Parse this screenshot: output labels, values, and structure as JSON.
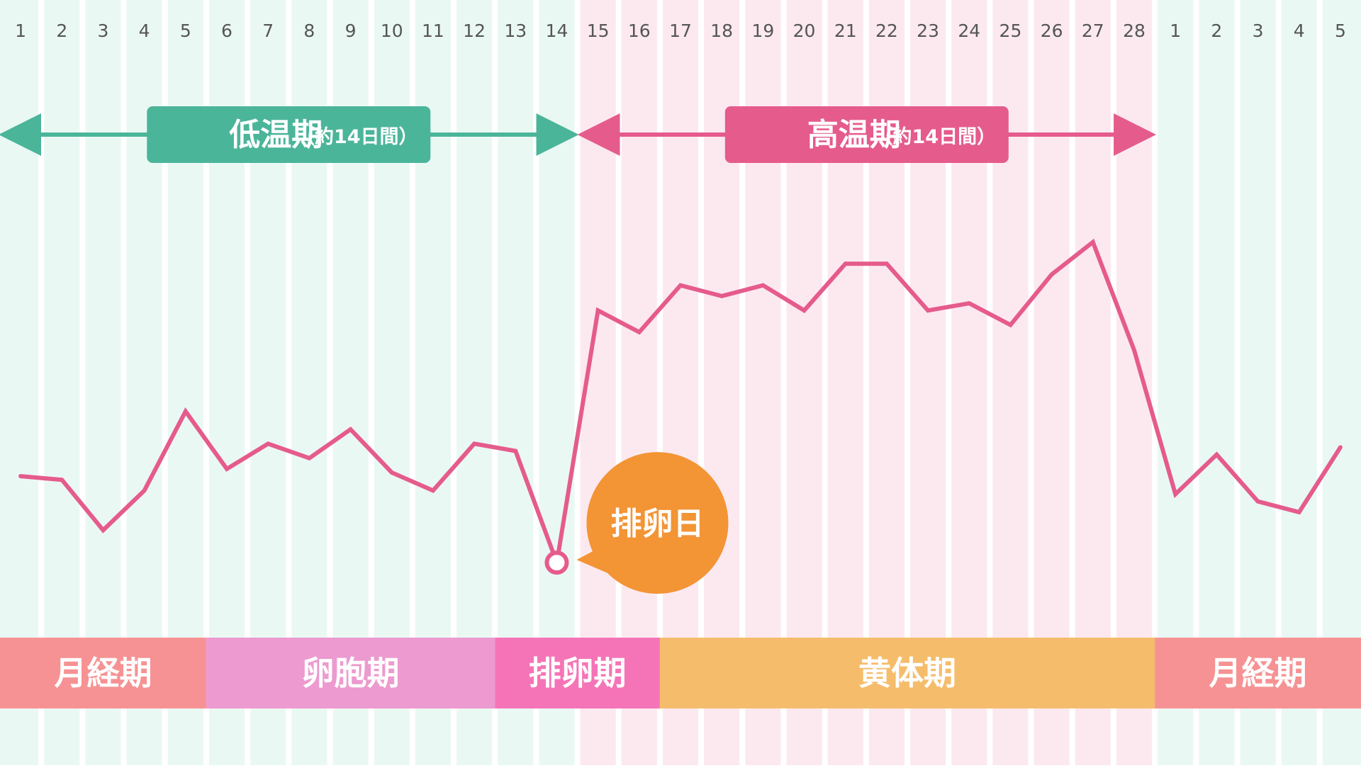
{
  "chart_data": {
    "type": "line",
    "days": [
      "1",
      "2",
      "3",
      "4",
      "5",
      "6",
      "7",
      "8",
      "9",
      "10",
      "11",
      "12",
      "13",
      "14",
      "15",
      "16",
      "17",
      "18",
      "19",
      "20",
      "21",
      "22",
      "23",
      "24",
      "25",
      "26",
      "27",
      "28",
      "1",
      "2",
      "3",
      "4",
      "5"
    ],
    "series": [
      {
        "values": [
          36.35,
          36.34,
          36.2,
          36.31,
          36.53,
          36.37,
          36.44,
          36.4,
          36.48,
          36.36,
          36.31,
          36.44,
          36.42,
          36.11,
          36.81,
          36.75,
          36.88,
          36.85,
          36.88,
          36.81,
          36.94,
          36.94,
          36.81,
          36.83,
          36.77,
          36.91,
          37.0,
          36.7,
          36.3,
          36.41,
          36.28,
          36.25,
          36.43
        ]
      }
    ],
    "ovulation_day_index": 13,
    "ylim": [
      36.0,
      37.2
    ],
    "grid": "vertical-stripes",
    "periods": [
      {
        "label": "低温期",
        "note": "（約14日間）",
        "start": 0,
        "end": 14,
        "color": "#4bb59a"
      },
      {
        "label": "高温期",
        "note": "（約14日間）",
        "start": 14,
        "end": 28,
        "color": "#e55b8c"
      }
    ],
    "callout": {
      "label": "排卵日",
      "color": "#f39435"
    },
    "phases": [
      {
        "label": "月経期",
        "start": 0,
        "end": 5,
        "color": "#f69293"
      },
      {
        "label": "卵胞期",
        "start": 5,
        "end": 12,
        "color": "#ec9acf"
      },
      {
        "label": "排卵期",
        "start": 12,
        "end": 16,
        "color": "#f574b7"
      },
      {
        "label": "黄体期",
        "start": 16,
        "end": 28,
        "color": "#f5bd6b"
      },
      {
        "label": "月経期",
        "start": 28,
        "end": 33,
        "color": "#f69293"
      }
    ],
    "colors": {
      "low_bg": "#eaf8f4",
      "high_bg": "#fce9f0",
      "stripe": "#ffffff",
      "line": "#e55b8c",
      "day_label": "#555555"
    }
  }
}
